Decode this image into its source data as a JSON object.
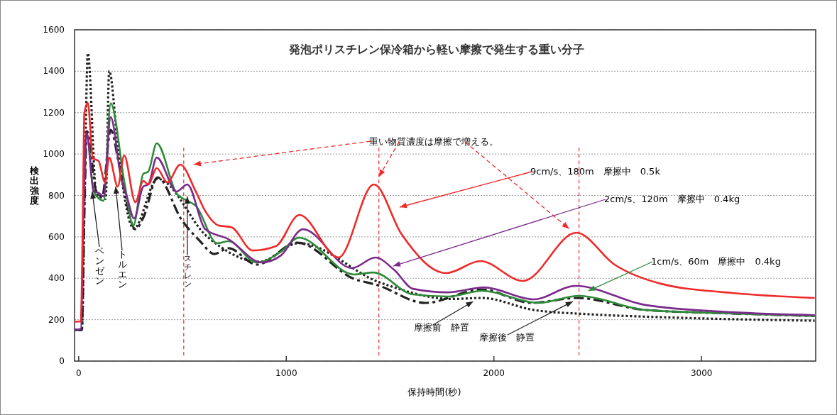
{
  "chart_data": {
    "type": "line",
    "title": "発泡ポリスチレン保冷箱から軽い摩擦で発生する重い分子",
    "xlabel": "保持時間(秒)",
    "ylabel": "検出強度",
    "xlim": [
      -20,
      3550
    ],
    "ylim": [
      0,
      1600
    ],
    "xticks": [
      0,
      1000,
      2000,
      3000
    ],
    "yticks": [
      0,
      200,
      400,
      600,
      800,
      1000,
      1200,
      1400,
      1600
    ],
    "grid": "y",
    "series": [
      {
        "color": "#ee2a2a",
        "line_style": "solid",
        "x": [
          -20,
          10,
          20,
          27,
          44,
          68,
          96,
          127,
          147,
          188,
          219,
          273,
          311,
          335,
          376,
          427,
          489,
          564,
          609,
          677,
          735,
          838,
          950,
          1063,
          1251,
          1422,
          1555,
          1771,
          1935,
          2140,
          2397,
          2581,
          2807,
          3149,
          3545
        ],
        "values": [
          190,
          192,
          700,
          1195,
          1247,
          980,
          966,
          863,
          983,
          843,
          993,
          767,
          870,
          853,
          932,
          863,
          949,
          819,
          726,
          654,
          647,
          534,
          555,
          706,
          500,
          853,
          613,
          425,
          483,
          387,
          620,
          466,
          373,
          329,
          305
        ]
      },
      {
        "color": "#7b2a8c",
        "line_style": "solid",
        "x": [
          -20,
          10,
          25,
          38,
          72,
          96,
          120,
          154,
          205,
          232,
          267,
          311,
          335,
          376,
          472,
          523,
          609,
          721,
          882,
          974,
          1080,
          1316,
          1429,
          1520,
          1610,
          1781,
          1952,
          2191,
          2393,
          2728,
          3149,
          3545
        ],
        "values": [
          150,
          155,
          800,
          1103,
          819,
          812,
          795,
          1178,
          880,
          795,
          689,
          843,
          853,
          983,
          819,
          853,
          637,
          589,
          476,
          510,
          637,
          449,
          500,
          440,
          349,
          332,
          356,
          298,
          363,
          271,
          236,
          222
        ]
      },
      {
        "color": "#2e8b3a",
        "line_style": "solid",
        "x": [
          25,
          40,
          72,
          120,
          154,
          222,
          263,
          311,
          335,
          376,
          472,
          516,
          564,
          667,
          721,
          858,
          974,
          1060,
          1326,
          1419,
          1610,
          1781,
          1942,
          2215,
          2410,
          2460,
          2728,
          3149,
          3545
        ],
        "values": [
          800,
          1100,
          819,
          774,
          1244,
          853,
          654,
          904,
          915,
          1052,
          808,
          778,
          750,
          569,
          579,
          476,
          528,
          596,
          418,
          428,
          322,
          312,
          339,
          281,
          315,
          310,
          247,
          230,
          218
        ]
      },
      {
        "color": "#222222",
        "line_style": "dotted",
        "x": [
          -20,
          15,
          30,
          44,
          85,
          130,
          147,
          188,
          222,
          265,
          380,
          620,
          870,
          1060,
          1450,
          1800,
          1942,
          2191,
          2465,
          2807,
          3545
        ],
        "values": [
          150,
          150,
          900,
          1487,
          808,
          784,
          1401,
          1048,
          784,
          640,
          880,
          600,
          480,
          570,
          380,
          300,
          305,
          247,
          226,
          212,
          195
        ]
      },
      {
        "color": "#222222",
        "line_style": "dashed",
        "x": [
          -20,
          15,
          28,
          40,
          85,
          113,
          154,
          198,
          273,
          311,
          380,
          496,
          585,
          653,
          721,
          858,
          1053,
          1326,
          1439,
          1668,
          1942,
          2181,
          2397,
          2728,
          3149,
          3545
        ],
        "values": [
          150,
          150,
          750,
          1110,
          819,
          795,
          1117,
          932,
          637,
          692,
          887,
          682,
          579,
          517,
          545,
          466,
          572,
          397,
          367,
          281,
          346,
          281,
          305,
          247,
          230,
          218
        ]
      }
    ],
    "ref_lines": [
      {
        "axis": "x",
        "value": 506,
        "color": "#ee2a2a",
        "line_style": "dashed"
      },
      {
        "axis": "x",
        "value": 1446,
        "color": "#ee2a2a",
        "line_style": "dashed"
      },
      {
        "axis": "x",
        "value": 2410,
        "color": "#ee2a2a",
        "line_style": "dashed"
      }
    ],
    "annotations": [
      {
        "text": "重い物質濃度は摩擦で増える。",
        "x": 1446,
        "y": 890
      },
      "9cm/s、180m　摩擦中　0.5k",
      {
        "text": "2cm/s、120m　摩擦中　0.4kg",
        "x": 1515,
        "y": 459
      },
      {
        "text": "1cm/s、60m　摩擦中　0.4kg",
        "x": 2455,
        "y": 339
      },
      {
        "text": "摩擦前　静置",
        "x": 1900,
        "y": 288
      },
      {
        "text": "摩擦後　静置",
        "x": 2380,
        "y": 288
      },
      {
        "text": "ベンゼン",
        "x": 65,
        "y": 819
      },
      {
        "text": "トルエン",
        "x": 178,
        "y": 843
      },
      {
        "text": "スチレン",
        "x": 523,
        "y": 795
      }
    ]
  }
}
